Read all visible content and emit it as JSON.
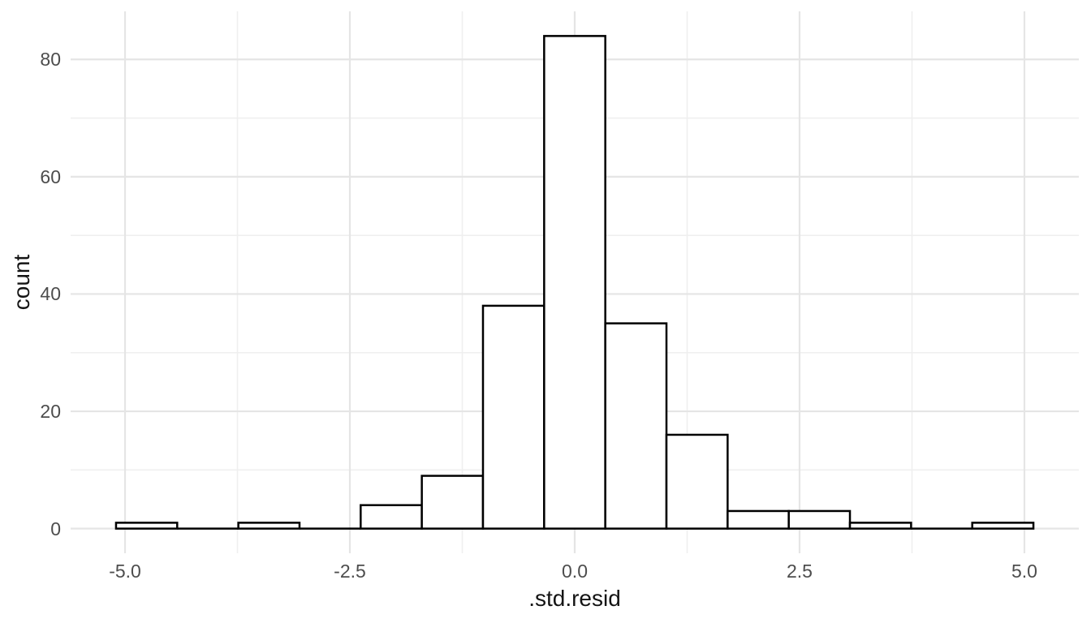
{
  "figure": {
    "background": "#ffffff"
  },
  "chart_data": {
    "type": "bar",
    "subtype": "histogram",
    "title": "",
    "xlabel": ".std.resid",
    "ylabel": "count",
    "bin_edges": [
      -5.1,
      -4.42,
      -3.74,
      -3.06,
      -2.38,
      -1.7,
      -1.02,
      -0.34,
      0.34,
      1.02,
      1.7,
      2.38,
      3.06,
      3.74,
      4.42,
      5.1
    ],
    "counts": [
      1,
      0,
      1,
      0,
      4,
      9,
      38,
      84,
      35,
      16,
      3,
      3,
      1,
      0,
      1
    ],
    "x_ticks": {
      "values": [
        -5.0,
        -2.5,
        0.0,
        2.5,
        5.0
      ],
      "labels": [
        "-5.0",
        "-2.5",
        "0.0",
        "2.5",
        "5.0"
      ]
    },
    "y_ticks": {
      "values": [
        0,
        20,
        40,
        60,
        80
      ],
      "labels": [
        "0",
        "20",
        "40",
        "60",
        "80"
      ]
    },
    "x_minor": [
      -3.75,
      -1.25,
      1.25,
      3.75
    ],
    "y_minor": [
      10,
      30,
      50,
      70
    ],
    "xlim": [
      -5.605,
      5.605
    ],
    "ylim": [
      -4.2,
      88.2
    ],
    "grid": "on",
    "legend": "none",
    "style": {
      "bar_fill": "#ffffff",
      "bar_stroke": "#000000",
      "bar_stroke_width": 2.5,
      "grid_major_color": "#e5e5e5",
      "grid_minor_color": "#efefef",
      "tick_label_color": "#4d4d4d",
      "axis_title_color": "#141414"
    }
  }
}
